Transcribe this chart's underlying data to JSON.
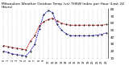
{
  "title": "Milwaukee Weather Outdoor Temp (vs) THSW Index per Hour (Last 24 Hours)",
  "title_fontsize": 3.2,
  "background_color": "#ffffff",
  "grid_color": "#aaaaaa",
  "hours": [
    0,
    1,
    2,
    3,
    4,
    5,
    6,
    7,
    8,
    9,
    10,
    11,
    12,
    13,
    14,
    15,
    16,
    17,
    18,
    19,
    20,
    21,
    22,
    23
  ],
  "outdoor_temp": [
    28,
    26,
    25,
    24,
    23,
    22,
    34,
    42,
    56,
    62,
    65,
    67,
    63,
    60,
    58,
    57,
    57,
    57,
    57,
    57,
    57,
    57,
    57,
    58
  ],
  "thsw_index": [
    20,
    18,
    16,
    15,
    14,
    13,
    20,
    30,
    52,
    72,
    78,
    75,
    58,
    50,
    45,
    42,
    42,
    42,
    42,
    42,
    42,
    43,
    44,
    46
  ],
  "temp_color": "#dd0000",
  "thsw_color": "#0000cc",
  "dot_color": "#000000",
  "ylim": [
    10,
    80
  ],
  "ytick_vals": [
    10,
    20,
    30,
    40,
    50,
    60,
    70,
    80
  ],
  "ytick_labels": [
    "10",
    "20",
    "30",
    "40",
    "50",
    "60",
    "70",
    "80"
  ],
  "ylabel_fontsize": 3.0,
  "xtick_fontsize": 2.5,
  "line_width": 0.6,
  "marker_size": 0.7,
  "dot_size": 0.9
}
